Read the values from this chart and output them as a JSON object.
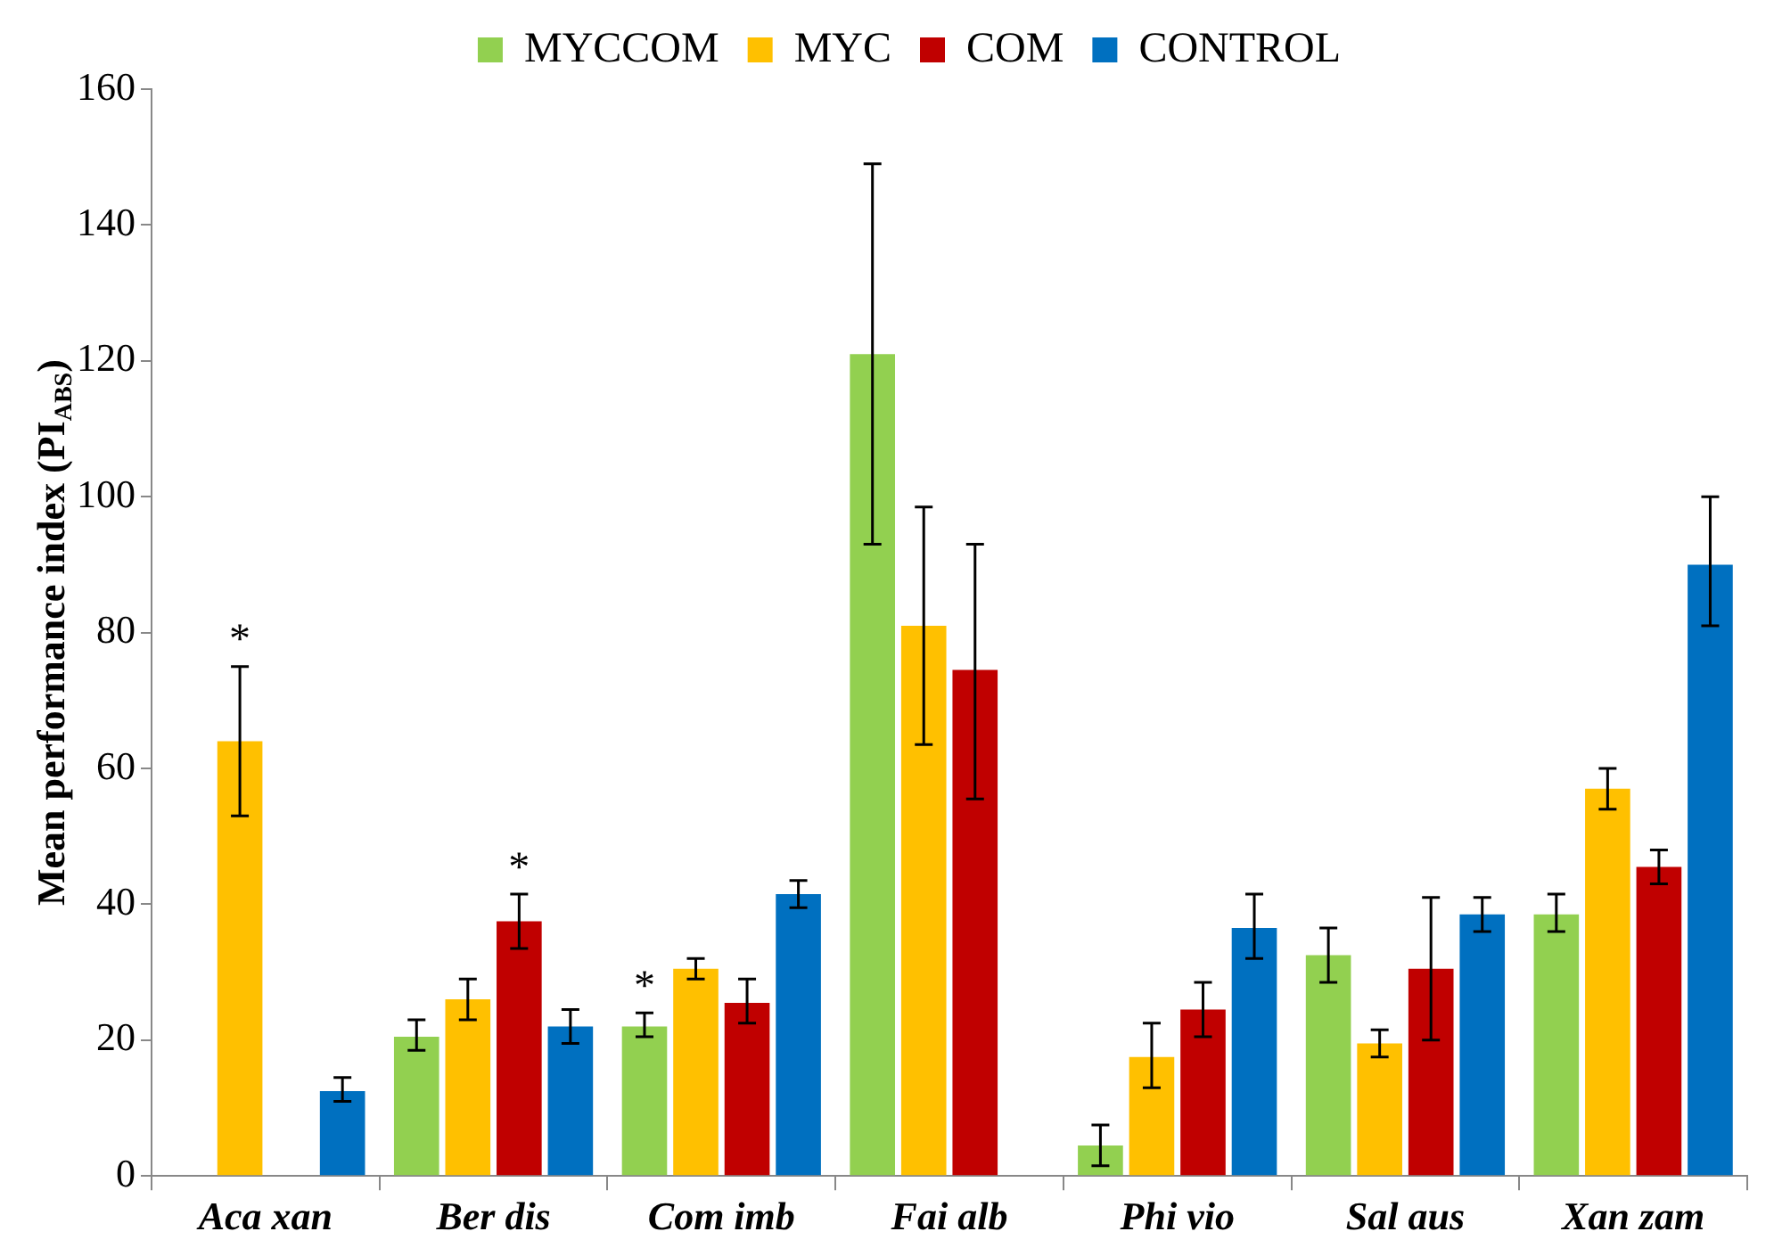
{
  "chart_data": {
    "type": "bar",
    "ylabel": "Mean performance index (PI$_{ABS}$)",
    "categories": [
      "Aca xan",
      "Ber dis",
      "Com imb",
      "Fai alb",
      "Phi vio",
      "Sal aus",
      "Xan zam"
    ],
    "series": [
      {
        "name": "MYCCOM",
        "color": "#92d050",
        "values": [
          null,
          20.5,
          22,
          121,
          4.5,
          32.5,
          38.5
        ],
        "errors": [
          null,
          [
            18.5,
            23
          ],
          [
            20.5,
            24
          ],
          [
            93,
            149
          ],
          [
            1.5,
            7.5
          ],
          [
            28.5,
            36.5
          ],
          [
            36,
            41.5
          ]
        ]
      },
      {
        "name": "MYC",
        "color": "#ffc000",
        "values": [
          64,
          26,
          30.5,
          81,
          17.5,
          19.5,
          57
        ],
        "errors": [
          [
            53,
            75
          ],
          [
            23,
            29
          ],
          [
            29,
            32
          ],
          [
            63.5,
            98.5
          ],
          [
            13,
            22.5
          ],
          [
            17.5,
            21.5
          ],
          [
            54,
            60
          ]
        ]
      },
      {
        "name": "COM",
        "color": "#c00000",
        "values": [
          null,
          37.5,
          25.5,
          74.5,
          24.5,
          30.5,
          45.5
        ],
        "errors": [
          null,
          [
            33.5,
            41.5
          ],
          [
            22.5,
            29
          ],
          [
            55.5,
            93
          ],
          [
            20.5,
            28.5
          ],
          [
            20,
            41
          ],
          [
            43,
            48
          ]
        ]
      },
      {
        "name": "CONTROL",
        "color": "#0070c0",
        "values": [
          12.5,
          22,
          41.5,
          null,
          36.5,
          38.5,
          90
        ],
        "errors": [
          [
            11,
            14.5
          ],
          [
            19.5,
            24.5
          ],
          [
            39.5,
            43.5
          ],
          null,
          [
            32,
            41.5
          ],
          [
            36,
            41
          ],
          [
            81,
            100
          ]
        ]
      }
    ],
    "ylim": [
      0,
      160
    ],
    "yticks": [
      0,
      20,
      40,
      60,
      80,
      100,
      120,
      140,
      160
    ],
    "annotations": [
      {
        "text": "*",
        "x": "Aca xan",
        "y": 64
      },
      {
        "text": "*",
        "x": "Ber dis",
        "y": 37.5
      },
      {
        "text": "*",
        "x": "Com imb",
        "y": 22
      }
    ],
    "legend": "top",
    "grid": false
  }
}
